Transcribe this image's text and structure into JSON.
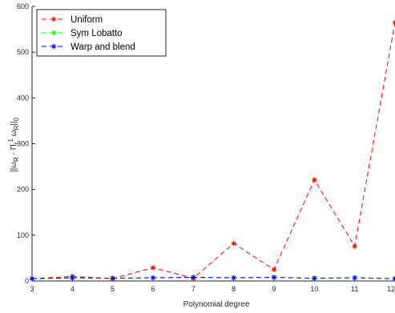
{
  "chart_data": {
    "type": "line",
    "title": "",
    "xlabel": "Polynomial degree",
    "ylabel_parts": {
      "pre": "||ω",
      "sub1": "R",
      "mid": " - Π",
      "sub2": "r",
      "sup": "1",
      "post1": " ω",
      "sub3": "R",
      "post2": "||",
      "sub4": "0"
    },
    "x": [
      3,
      4,
      5,
      6,
      7,
      8,
      9,
      10,
      11,
      12
    ],
    "xlim": [
      3,
      12
    ],
    "ylim": [
      0,
      600
    ],
    "xticks": [
      "3",
      "4",
      "5",
      "6",
      "7",
      "8",
      "9",
      "10",
      "11",
      "12"
    ],
    "yticks": [
      "0",
      "100",
      "200",
      "300",
      "400",
      "500",
      "600"
    ],
    "legend_position": "top-left",
    "grid": false,
    "series": [
      {
        "name": "Uniform",
        "color": "#ff0000",
        "values": [
          5,
          10,
          5,
          29,
          6,
          82,
          25,
          221,
          76,
          565
        ]
      },
      {
        "name": "Sym Lobatto",
        "color": "#00ff00",
        "values": [
          5,
          7,
          6,
          7,
          8,
          7,
          8,
          6,
          7,
          5
        ]
      },
      {
        "name": "Warp and blend",
        "color": "#0000ff",
        "values": [
          5,
          7,
          6,
          7,
          8,
          7,
          8,
          6,
          7,
          5
        ]
      }
    ]
  }
}
